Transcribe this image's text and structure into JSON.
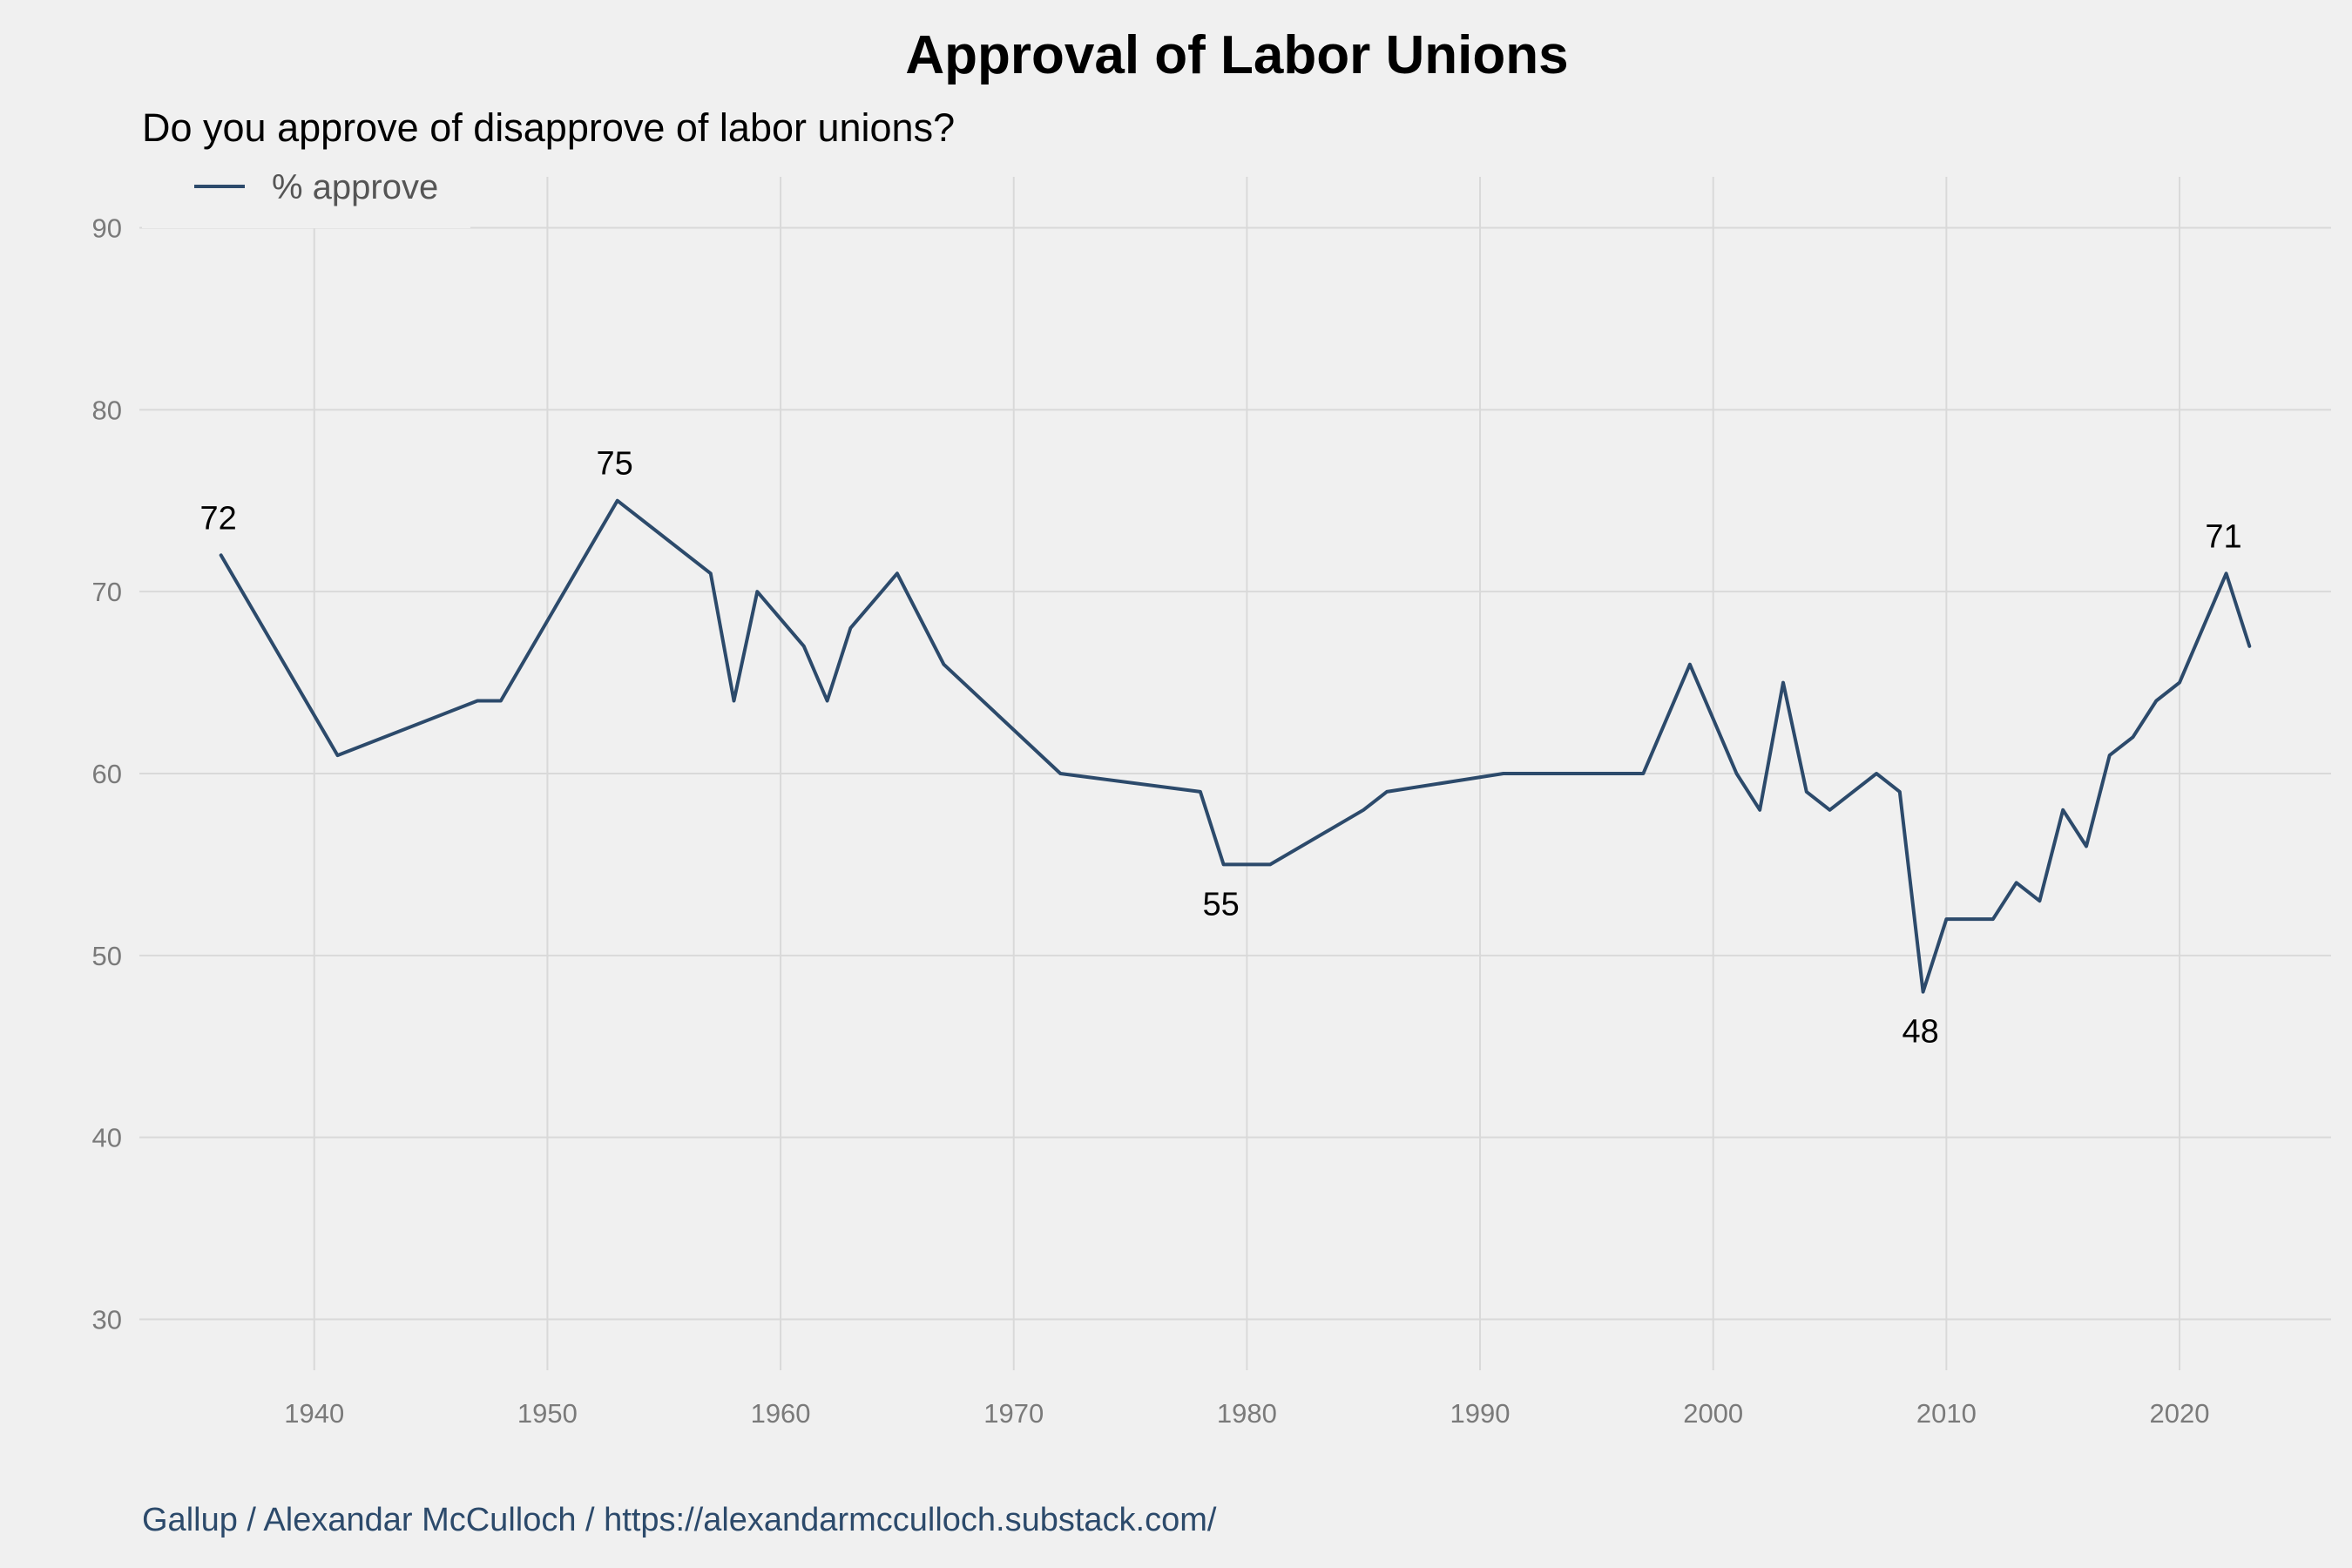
{
  "chart_data": {
    "type": "line",
    "title": "Approval of Labor Unions",
    "subtitle": "Do you approve of disapprove of labor unions?",
    "caption": "Gallup / Alexandar McCulloch / https://alexandarmcculloch.substack.com/",
    "xlabel": "",
    "ylabel": "",
    "xlim": [
      1932.5,
      2026.5
    ],
    "ylim": [
      27.2,
      92.8
    ],
    "grid": true,
    "legend_position": "top-left",
    "x_ticks": [
      1940,
      1950,
      1960,
      1970,
      1980,
      1990,
      2000,
      2010,
      2020
    ],
    "y_ticks": [
      30,
      40,
      50,
      60,
      70,
      80,
      90
    ],
    "line_color": "#2c4a6b",
    "caption_color": "#2c4a6b",
    "series": [
      {
        "name": "% approve",
        "x": [
          1936,
          1941,
          1947,
          1948,
          1953,
          1957,
          1958,
          1959,
          1961,
          1962,
          1963,
          1965,
          1967,
          1972,
          1978,
          1979,
          1981,
          1985,
          1986,
          1991,
          1997,
          1999,
          2001,
          2002,
          2003,
          2004,
          2005,
          2007,
          2008,
          2009,
          2010,
          2012,
          2013,
          2014,
          2015,
          2016,
          2017,
          2018,
          2019,
          2020,
          2022,
          2023
        ],
        "y": [
          72,
          61,
          64,
          64,
          75,
          71,
          64,
          70,
          67,
          64,
          68,
          71,
          66,
          60,
          59,
          55,
          55,
          58,
          59,
          60,
          60,
          66,
          60,
          58,
          65,
          59,
          58,
          60,
          59,
          48,
          52,
          52,
          54,
          53,
          58,
          56,
          61,
          62,
          64,
          65,
          71,
          67
        ]
      }
    ],
    "annotations": [
      {
        "x": 1936,
        "y": 72,
        "label": "72",
        "position": "above"
      },
      {
        "x": 1953,
        "y": 75,
        "label": "75",
        "position": "above"
      },
      {
        "x": 1979,
        "y": 55,
        "label": "55",
        "position": "below"
      },
      {
        "x": 2009,
        "y": 48,
        "label": "48",
        "position": "below"
      },
      {
        "x": 2022,
        "y": 71,
        "label": "71",
        "position": "above"
      }
    ]
  }
}
